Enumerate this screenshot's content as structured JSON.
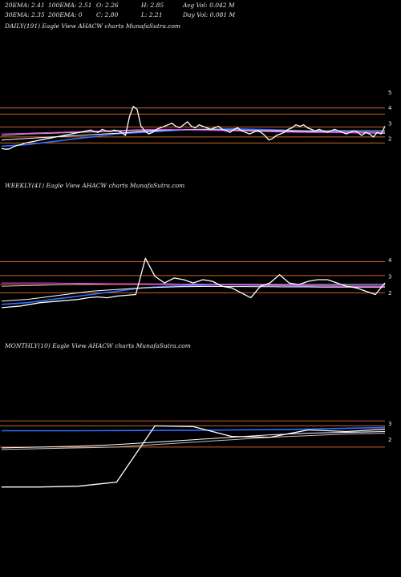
{
  "header": {
    "ema20": "20EMA: 2.41",
    "ema100": "100EMA: 2.51",
    "open": "O: 2.26",
    "high": "H: 2.85",
    "avg_vol": "Avg Vol: 0.042  M",
    "ema30": "30EMA: 2.35",
    "ema200": "200EMA: 0",
    "close": "C: 2.80",
    "low": "L: 2.21",
    "day_vol": "Day Vol: 0.081  M"
  },
  "colors": {
    "background": "#000000",
    "price": "#ffffff",
    "ema_short": "#2f6fff",
    "ema_mid": "#ffffff",
    "ema_long": "#c0c0c0",
    "ema_magenta": "#ff3cff",
    "level_line": "#c86428"
  },
  "chart_data": [
    {
      "type": "line",
      "title": "DAILY(191) Eagle   View  AHACW charts MunafaSutra.com",
      "ylim": [
        1.1,
        5.4
      ],
      "y_ticks": [
        5,
        4,
        3,
        2
      ],
      "levels": [
        4.0,
        3.6,
        2.75,
        2.1,
        1.7
      ],
      "series": [
        {
          "role": "price",
          "color": "#ffffff",
          "values": [
            1.35,
            1.3,
            1.32,
            1.45,
            1.55,
            1.6,
            1.7,
            1.75,
            1.8,
            1.85,
            1.9,
            1.95,
            2.0,
            2.05,
            2.1,
            2.15,
            2.2,
            2.25,
            2.3,
            2.35,
            2.4,
            2.45,
            2.5,
            2.55,
            2.45,
            2.4,
            2.6,
            2.5,
            2.45,
            2.55,
            2.5,
            2.4,
            2.2,
            3.4,
            4.1,
            3.9,
            2.8,
            2.5,
            2.3,
            2.4,
            2.6,
            2.7,
            2.8,
            2.9,
            3.0,
            2.8,
            2.7,
            2.9,
            3.1,
            2.8,
            2.7,
            2.9,
            2.8,
            2.7,
            2.6,
            2.7,
            2.8,
            2.6,
            2.5,
            2.4,
            2.6,
            2.7,
            2.5,
            2.4,
            2.3,
            2.4,
            2.5,
            2.4,
            2.2,
            1.9,
            2.0,
            2.2,
            2.3,
            2.4,
            2.6,
            2.7,
            2.9,
            2.8,
            2.9,
            2.7,
            2.6,
            2.5,
            2.6,
            2.5,
            2.4,
            2.5,
            2.6,
            2.5,
            2.4,
            2.3,
            2.4,
            2.5,
            2.4,
            2.2,
            2.4,
            2.3,
            2.1,
            2.4,
            2.3,
            2.8
          ]
        },
        {
          "role": "ema20",
          "color": "#2f6fff",
          "values": [
            1.5,
            1.55,
            1.6,
            1.7,
            1.8,
            1.9,
            2.0,
            2.1,
            2.2,
            2.3,
            2.35,
            2.4,
            2.45,
            2.5,
            2.55,
            2.58,
            2.6,
            2.62,
            2.63,
            2.62,
            2.6,
            2.58,
            2.55,
            2.52,
            2.5,
            2.48,
            2.46,
            2.45,
            2.44,
            2.42,
            2.41
          ]
        },
        {
          "role": "ema30",
          "color": "#ffffff",
          "values": [
            1.9,
            1.95,
            2.0,
            2.05,
            2.1,
            2.15,
            2.2,
            2.25,
            2.3,
            2.35,
            2.4,
            2.45,
            2.5,
            2.55,
            2.58,
            2.6,
            2.6,
            2.58,
            2.56,
            2.54,
            2.52,
            2.5,
            2.48,
            2.46,
            2.44,
            2.42,
            2.4,
            2.38,
            2.37,
            2.36,
            2.35
          ]
        },
        {
          "role": "ema100",
          "color": "#c0c0c0",
          "values": [
            2.2,
            2.25,
            2.3,
            2.32,
            2.35,
            2.38,
            2.4,
            2.42,
            2.45,
            2.48,
            2.5,
            2.52,
            2.54,
            2.56,
            2.57,
            2.58,
            2.58,
            2.57,
            2.56,
            2.55,
            2.54,
            2.53,
            2.52,
            2.52,
            2.51,
            2.51,
            2.51,
            2.51,
            2.51,
            2.51,
            2.51
          ]
        },
        {
          "role": "ema_magenta",
          "color": "#ff3cff",
          "values": [
            2.3,
            2.32,
            2.35,
            2.38,
            2.4,
            2.42,
            2.45,
            2.48,
            2.5,
            2.52,
            2.55,
            2.58,
            2.6,
            2.6,
            2.58,
            2.56,
            2.54,
            2.52,
            2.5,
            2.48,
            2.46,
            2.44,
            2.42,
            2.41,
            2.4,
            2.4,
            2.39,
            2.38,
            2.38,
            2.37,
            2.37
          ]
        }
      ]
    },
    {
      "type": "line",
      "title": "WEEKLY(41) Eagle   View  AHACW charts MunafaSutra.com",
      "ylim": [
        0.9,
        4.6
      ],
      "y_ticks": [
        4,
        3,
        2
      ],
      "levels": [
        3.9,
        3.05,
        2.5,
        2.0
      ],
      "series": [
        {
          "role": "price",
          "color": "#ffffff",
          "values": [
            1.1,
            1.15,
            1.2,
            1.3,
            1.4,
            1.45,
            1.5,
            1.55,
            1.6,
            1.7,
            1.75,
            1.7,
            1.8,
            1.85,
            1.9,
            4.1,
            3.0,
            2.6,
            2.9,
            2.8,
            2.6,
            2.8,
            2.7,
            2.4,
            2.3,
            2.0,
            1.7,
            2.4,
            2.6,
            3.1,
            2.6,
            2.5,
            2.7,
            2.8,
            2.8,
            2.6,
            2.4,
            2.3,
            2.1,
            1.9,
            2.6
          ]
        },
        {
          "role": "ema20",
          "color": "#2f6fff",
          "values": [
            1.3,
            1.35,
            1.4,
            1.5,
            1.6,
            1.7,
            1.8,
            1.9,
            2.0,
            2.1,
            2.2,
            2.3,
            2.35,
            2.4,
            2.42,
            2.45,
            2.47,
            2.48,
            2.48,
            2.47,
            2.46,
            2.45,
            2.44,
            2.43,
            2.42,
            2.42,
            2.42,
            2.41,
            2.41,
            2.41,
            2.41
          ]
        },
        {
          "role": "ema30",
          "color": "#ffffff",
          "values": [
            1.5,
            1.55,
            1.6,
            1.7,
            1.8,
            1.9,
            2.0,
            2.1,
            2.15,
            2.2,
            2.25,
            2.3,
            2.33,
            2.35,
            2.37,
            2.38,
            2.39,
            2.39,
            2.38,
            2.38,
            2.37,
            2.37,
            2.36,
            2.36,
            2.36,
            2.35,
            2.35,
            2.35,
            2.35,
            2.35,
            2.35
          ]
        },
        {
          "role": "ema100",
          "color": "#c0c0c0",
          "values": [
            2.4,
            2.42,
            2.44,
            2.46,
            2.48,
            2.5,
            2.52,
            2.53,
            2.54,
            2.55,
            2.55,
            2.55,
            2.54,
            2.54,
            2.53,
            2.53,
            2.52,
            2.52,
            2.52,
            2.51,
            2.51,
            2.51,
            2.51,
            2.51,
            2.51,
            2.51,
            2.51,
            2.51,
            2.51,
            2.51,
            2.51
          ]
        },
        {
          "role": "ema_magenta",
          "color": "#ff3cff",
          "values": [
            2.6,
            2.6,
            2.6,
            2.6,
            2.6,
            2.58,
            2.58,
            2.57,
            2.56,
            2.55,
            2.55,
            2.54,
            2.53,
            2.52,
            2.51,
            2.5,
            2.5,
            2.49,
            2.48,
            2.48,
            2.47,
            2.46,
            2.45,
            2.44,
            2.43,
            2.42,
            2.41,
            2.4,
            2.4,
            2.39,
            2.38
          ]
        }
      ]
    },
    {
      "type": "line",
      "title": "MONTHLY(10) Eagle   View  AHACW charts MunafaSutra.com",
      "ylim": [
        -1.6,
        3.9
      ],
      "y_ticks": [
        3,
        2
      ],
      "levels": [
        3.15,
        2.85,
        1.55
      ],
      "series": [
        {
          "role": "price",
          "color": "#ffffff",
          "values": [
            -0.9,
            -0.9,
            -0.85,
            -0.6,
            2.85,
            2.8,
            2.2,
            2.15,
            2.6,
            2.5,
            2.65
          ]
        },
        {
          "role": "ema20",
          "color": "#2f6fff",
          "values": [
            2.55,
            2.55,
            2.55,
            2.56,
            2.57,
            2.58,
            2.6,
            2.62,
            2.65,
            2.7,
            2.75
          ]
        },
        {
          "role": "ema30",
          "color": "#ffffff",
          "values": [
            1.5,
            1.55,
            1.6,
            1.7,
            1.85,
            2.0,
            2.15,
            2.3,
            2.4,
            2.45,
            2.5
          ]
        },
        {
          "role": "ema100",
          "color": "#c0c0c0",
          "values": [
            1.4,
            1.45,
            1.5,
            1.55,
            1.7,
            1.85,
            2.0,
            2.15,
            2.25,
            2.35,
            2.4
          ]
        }
      ]
    }
  ]
}
